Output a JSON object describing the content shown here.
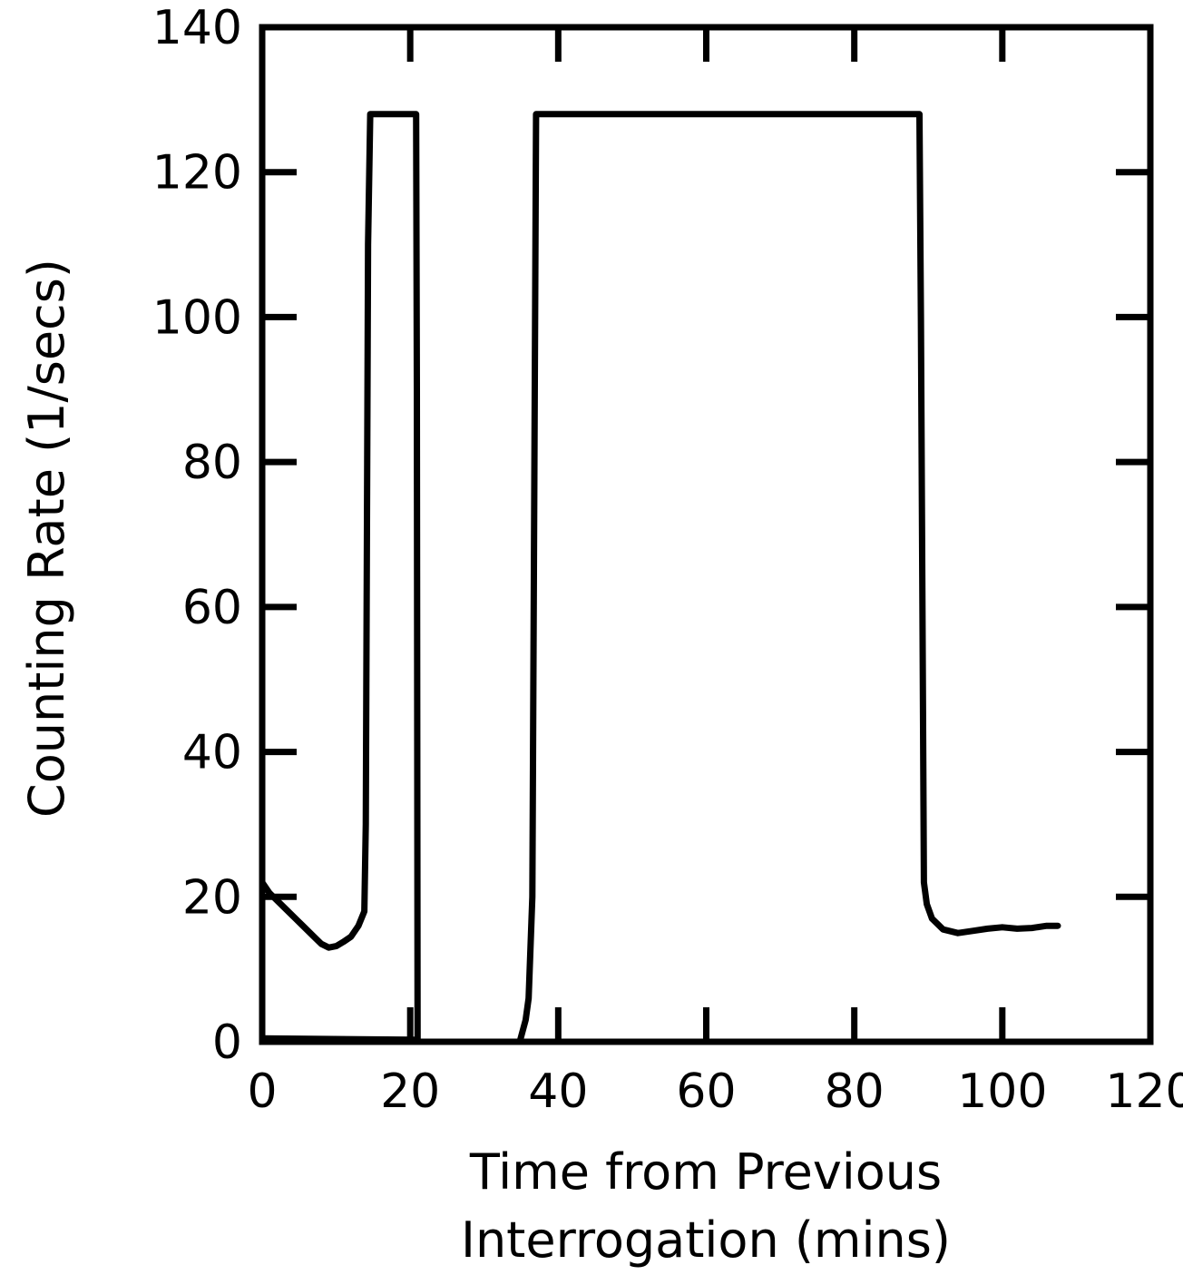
{
  "chart_data": {
    "type": "line",
    "title": "",
    "xlabel_lines": [
      "Time from Previous",
      "Interrogation (mins)"
    ],
    "ylabel": "Counting Rate (1/secs)",
    "xlim": [
      0,
      120
    ],
    "ylim": [
      0,
      140
    ],
    "x_ticks": [
      0,
      20,
      40,
      60,
      80,
      100,
      120
    ],
    "y_ticks": [
      0,
      20,
      40,
      60,
      80,
      100,
      120,
      140
    ],
    "x_tick_labels": [
      "0",
      "20",
      "40",
      "60",
      "80",
      "100",
      "120"
    ],
    "y_tick_labels": [
      "0",
      "20",
      "40",
      "60",
      "80",
      "100",
      "120",
      "140"
    ],
    "grid": false,
    "legend": "none",
    "line_color": "#000000",
    "series": [
      {
        "points": [
          [
            0,
            22
          ],
          [
            1,
            20.5
          ],
          [
            3,
            18.5
          ],
          [
            5,
            16.5
          ],
          [
            7,
            14.5
          ],
          [
            8,
            13.5
          ],
          [
            9,
            13
          ],
          [
            10,
            13.2
          ],
          [
            11,
            13.8
          ],
          [
            12,
            14.5
          ],
          [
            13,
            16
          ],
          [
            13.8,
            18
          ],
          [
            14,
            30
          ],
          [
            14.3,
            110
          ],
          [
            14.6,
            128
          ],
          [
            20.8,
            128
          ],
          [
            20.9,
            90
          ],
          [
            21,
            0
          ],
          [
            34.8,
            0
          ],
          [
            35.6,
            3
          ],
          [
            36,
            6
          ],
          [
            36.5,
            20
          ],
          [
            37,
            128
          ],
          [
            88.8,
            128
          ],
          [
            89,
            100
          ],
          [
            89.4,
            22
          ],
          [
            89.8,
            19
          ],
          [
            90.5,
            17
          ],
          [
            92,
            15.5
          ],
          [
            94,
            15
          ],
          [
            96,
            15.3
          ],
          [
            98,
            15.6
          ],
          [
            100,
            15.8
          ],
          [
            102,
            15.6
          ],
          [
            104,
            15.7
          ],
          [
            106,
            16
          ],
          [
            107.5,
            16
          ]
        ]
      },
      {
        "points": [
          [
            0,
            0.6
          ],
          [
            20.5,
            0.4
          ]
        ]
      }
    ]
  }
}
